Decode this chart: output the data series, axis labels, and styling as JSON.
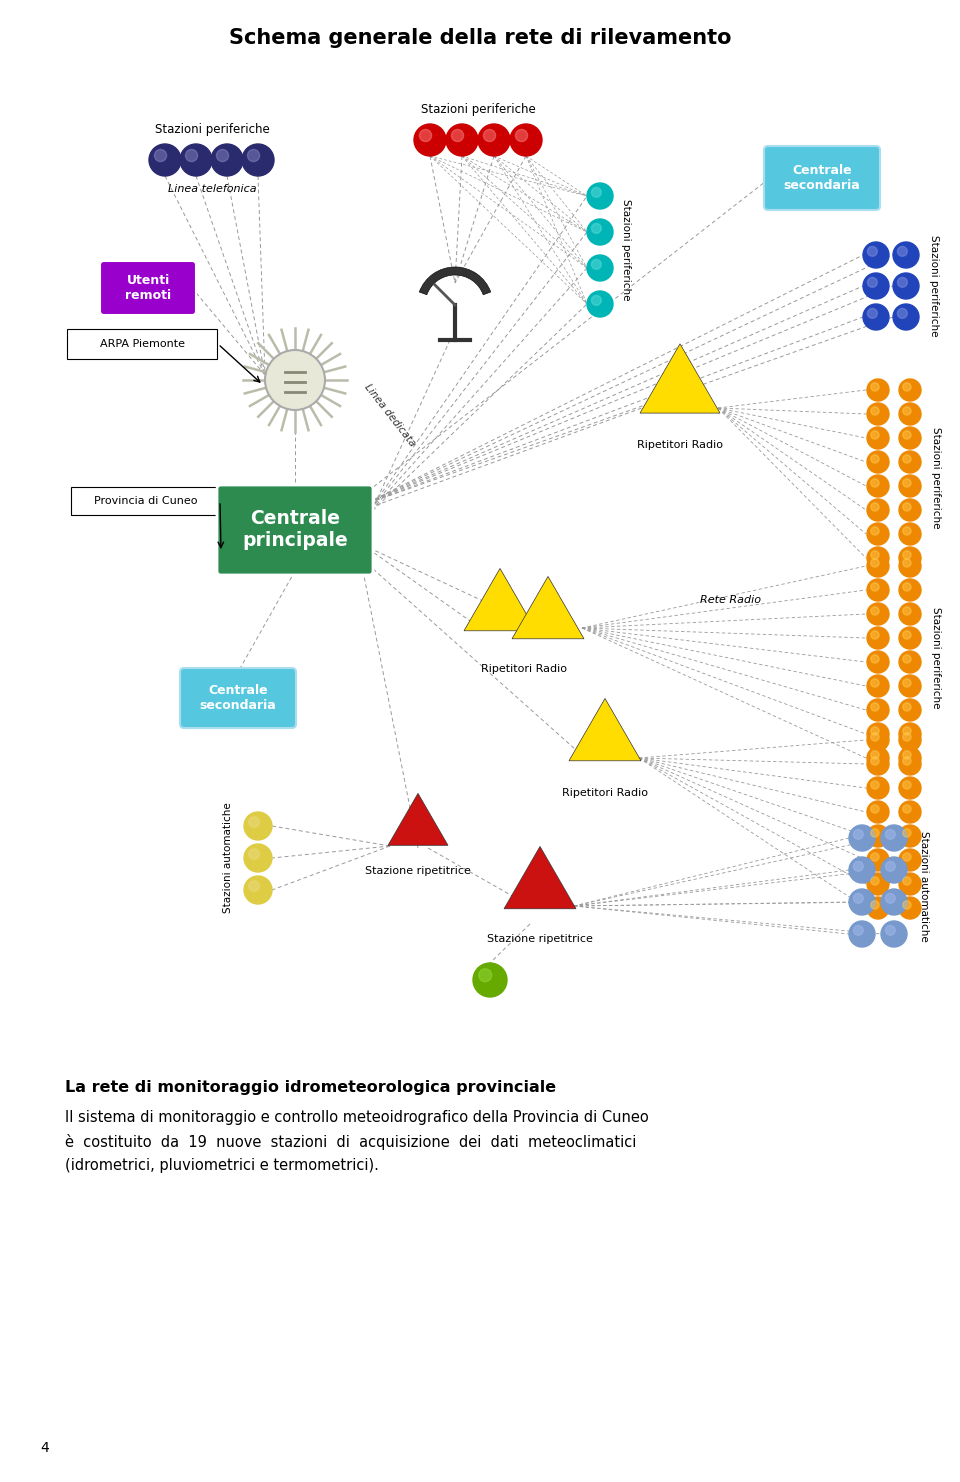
{
  "title": "Schema generale della rete di rilevamento",
  "title_fontsize": 15,
  "title_weight": "bold",
  "page_number": "4",
  "body_title": "La rete di monitoraggio idrometeorologica provinciale",
  "body_text_line1": "Il sistema di monitoraggio e controllo meteoidrografico della Provincia di Cuneo",
  "body_text_line2": "è  costituito  da  19  nuove  stazioni  di  acquisizione  dei  dati  meteoclimatici",
  "body_text_line3": "(idrometrici, pluviometrici e termometrici).",
  "bg_color": "#ffffff",
  "diagram_scale": 1.0
}
